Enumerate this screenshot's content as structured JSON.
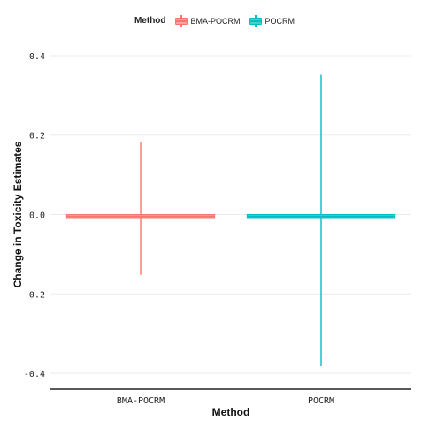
{
  "legend": {
    "title": "Method",
    "items": [
      {
        "label": "BMA-POCRM",
        "fill": "#f8a19b",
        "line": "#f8766d"
      },
      {
        "label": "POCRM",
        "fill": "#3ed2cc",
        "line": "#00bfc4"
      }
    ]
  },
  "chart_data": {
    "type": "boxplot",
    "xlabel": "Method",
    "ylabel": "Change in Toxicity Estimates",
    "categories": [
      "BMA-POCRM",
      "POCRM"
    ],
    "series": [
      {
        "name": "BMA-POCRM",
        "min": -0.152,
        "q1": -0.01,
        "median": -0.005,
        "q3": 0.0,
        "max": 0.182,
        "color": "#f8766d",
        "fill": "#f8a19b"
      },
      {
        "name": "POCRM",
        "min": -0.382,
        "q1": -0.01,
        "median": -0.005,
        "q3": 0.0,
        "max": 0.352,
        "color": "#00bfc4",
        "fill": "#3ed2cc"
      }
    ],
    "yticks": [
      0.4,
      0.2,
      0.0,
      -0.2,
      -0.4
    ],
    "ytick_labels": [
      "0.4",
      "0.2",
      "0.0",
      "-0.2",
      "-0.4"
    ],
    "ylim": [
      -0.44,
      0.44
    ],
    "grid": true,
    "legend_position": "top"
  }
}
